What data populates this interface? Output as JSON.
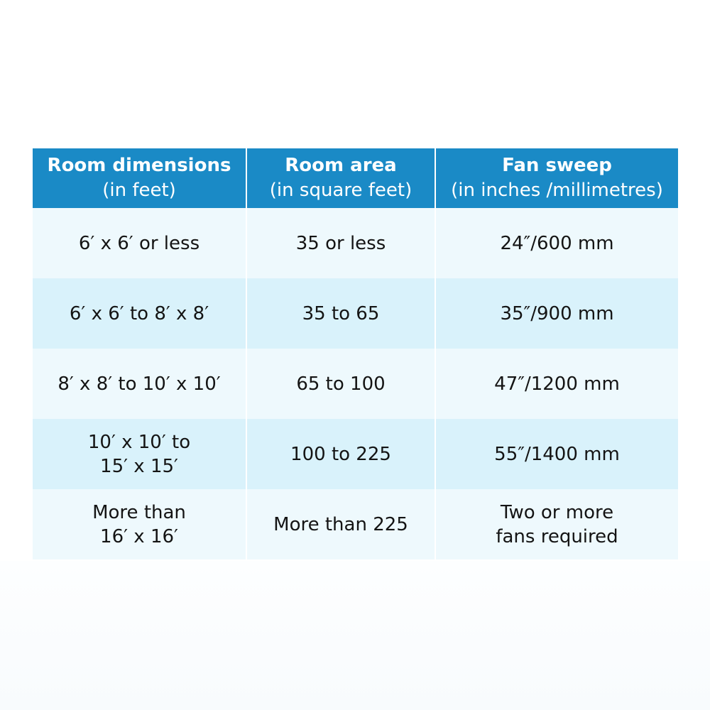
{
  "table": {
    "headers": [
      {
        "bold": "Room dimensions",
        "normal": "(in feet)"
      },
      {
        "bold": "Room area",
        "normal": "(in square feet)"
      },
      {
        "bold": "Fan sweep",
        "normal": " (in inches /millimetres)"
      }
    ],
    "rows": [
      [
        "6′ x 6′ or less",
        "35 or less",
        "24″/600 mm"
      ],
      [
        "6′ x 6′ to 8′ x 8′",
        "35 to 65",
        "35″/900 mm"
      ],
      [
        "8′ x 8′ to 10′ x 10′",
        "65 to 100",
        "47″/1200 mm"
      ],
      [
        "10′ x 10′ to 15′ x 15′",
        "100 to 225",
        "55″/1400 mm"
      ],
      [
        "More than 16′ x 16′",
        "More than 225",
        "Two or more fans required"
      ]
    ]
  },
  "colors": {
    "header": "#1a8ac6",
    "row_light": "#eef9fd",
    "row_alt": "#d9f2fb"
  }
}
